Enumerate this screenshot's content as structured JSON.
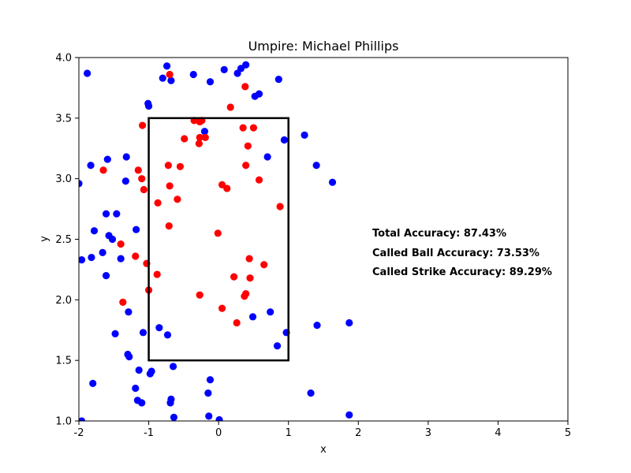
{
  "chart_data": {
    "type": "scatter",
    "title": "Umpire: Michael Phillips",
    "xlabel": "x",
    "ylabel": "y",
    "xlim": [
      -2,
      5
    ],
    "ylim": [
      1.0,
      4.0
    ],
    "xticks": [
      "-2",
      "-1",
      "0",
      "1",
      "2",
      "3",
      "4",
      "5"
    ],
    "yticks": [
      "1.0",
      "1.5",
      "2.0",
      "2.5",
      "3.0",
      "3.5",
      "4.0"
    ],
    "grid": false,
    "strike_zone": {
      "x": [
        -1,
        1
      ],
      "y": [
        1.5,
        3.5
      ]
    },
    "annotations": [
      "Total Accuracy: 87.43%",
      "Called Ball Accuracy: 73.53%",
      "Called Strike Accuracy: 89.29%"
    ],
    "series": [
      {
        "color": "#0000ff",
        "points": [
          [
            -1.88,
            3.87
          ],
          [
            -0.74,
            3.93
          ],
          [
            -0.8,
            3.83
          ],
          [
            -0.68,
            3.81
          ],
          [
            -0.36,
            3.86
          ],
          [
            -0.12,
            3.8
          ],
          [
            0.08,
            3.9
          ],
          [
            0.27,
            3.87
          ],
          [
            0.32,
            3.91
          ],
          [
            0.39,
            3.94
          ],
          [
            0.52,
            3.68
          ],
          [
            0.58,
            3.7
          ],
          [
            0.86,
            3.82
          ],
          [
            -1.01,
            3.62
          ],
          [
            -1.0,
            3.6
          ],
          [
            -0.2,
            3.39
          ],
          [
            0.94,
            3.32
          ],
          [
            1.23,
            3.36
          ],
          [
            1.4,
            3.11
          ],
          [
            1.63,
            2.97
          ],
          [
            0.7,
            3.18
          ],
          [
            -1.83,
            3.11
          ],
          [
            -1.59,
            3.16
          ],
          [
            -1.32,
            3.18
          ],
          [
            -1.33,
            2.98
          ],
          [
            -2.0,
            2.96
          ],
          [
            -1.61,
            2.71
          ],
          [
            -1.46,
            2.71
          ],
          [
            -1.78,
            2.57
          ],
          [
            -1.57,
            2.53
          ],
          [
            -1.52,
            2.5
          ],
          [
            -1.18,
            2.58
          ],
          [
            -1.96,
            2.33
          ],
          [
            -1.82,
            2.35
          ],
          [
            -1.66,
            2.39
          ],
          [
            -1.4,
            2.34
          ],
          [
            -1.61,
            2.2
          ],
          [
            -1.29,
            1.9
          ],
          [
            -1.48,
            1.72
          ],
          [
            -1.3,
            1.55
          ],
          [
            -1.28,
            1.53
          ],
          [
            -1.08,
            1.73
          ],
          [
            -0.85,
            1.77
          ],
          [
            -0.73,
            1.71
          ],
          [
            -1.14,
            1.42
          ],
          [
            -0.98,
            1.39
          ],
          [
            -0.96,
            1.41
          ],
          [
            -0.65,
            1.45
          ],
          [
            -1.19,
            1.27
          ],
          [
            -1.16,
            1.17
          ],
          [
            -1.1,
            1.15
          ],
          [
            -1.8,
            1.31
          ],
          [
            -0.68,
            1.18
          ],
          [
            -0.69,
            1.15
          ],
          [
            -0.64,
            1.03
          ],
          [
            -0.15,
            1.23
          ],
          [
            -0.12,
            1.34
          ],
          [
            -0.14,
            1.04
          ],
          [
            0.01,
            1.01
          ],
          [
            -1.96,
            1.0
          ],
          [
            0.49,
            1.86
          ],
          [
            0.74,
            1.9
          ],
          [
            0.84,
            1.62
          ],
          [
            0.97,
            1.73
          ],
          [
            1.41,
            1.79
          ],
          [
            1.87,
            1.81
          ],
          [
            1.32,
            1.23
          ],
          [
            1.87,
            1.05
          ]
        ]
      },
      {
        "color": "#ff0000",
        "points": [
          [
            -0.7,
            3.86
          ],
          [
            0.38,
            3.76
          ],
          [
            0.17,
            3.59
          ],
          [
            -1.09,
            3.44
          ],
          [
            -0.35,
            3.48
          ],
          [
            -0.27,
            3.47
          ],
          [
            -0.24,
            3.48
          ],
          [
            0.35,
            3.42
          ],
          [
            0.5,
            3.42
          ],
          [
            -0.49,
            3.33
          ],
          [
            -0.27,
            3.34
          ],
          [
            -0.19,
            3.34
          ],
          [
            -0.28,
            3.29
          ],
          [
            0.42,
            3.27
          ],
          [
            -1.15,
            3.07
          ],
          [
            -0.72,
            3.11
          ],
          [
            -0.55,
            3.1
          ],
          [
            0.39,
            3.11
          ],
          [
            -1.1,
            3.0
          ],
          [
            -1.07,
            2.91
          ],
          [
            -1.65,
            3.07
          ],
          [
            -0.7,
            2.94
          ],
          [
            0.05,
            2.95
          ],
          [
            0.12,
            2.92
          ],
          [
            0.58,
            2.99
          ],
          [
            -0.87,
            2.8
          ],
          [
            -0.59,
            2.83
          ],
          [
            0.88,
            2.77
          ],
          [
            -0.71,
            2.61
          ],
          [
            -0.01,
            2.55
          ],
          [
            -1.4,
            2.46
          ],
          [
            -1.19,
            2.36
          ],
          [
            -1.03,
            2.3
          ],
          [
            0.44,
            2.34
          ],
          [
            0.65,
            2.29
          ],
          [
            -0.88,
            2.21
          ],
          [
            0.22,
            2.19
          ],
          [
            0.45,
            2.18
          ],
          [
            -1.0,
            2.08
          ],
          [
            -1.37,
            1.98
          ],
          [
            -0.27,
            2.04
          ],
          [
            0.37,
            2.03
          ],
          [
            0.39,
            2.05
          ],
          [
            0.05,
            1.93
          ],
          [
            0.26,
            1.81
          ]
        ]
      }
    ]
  }
}
